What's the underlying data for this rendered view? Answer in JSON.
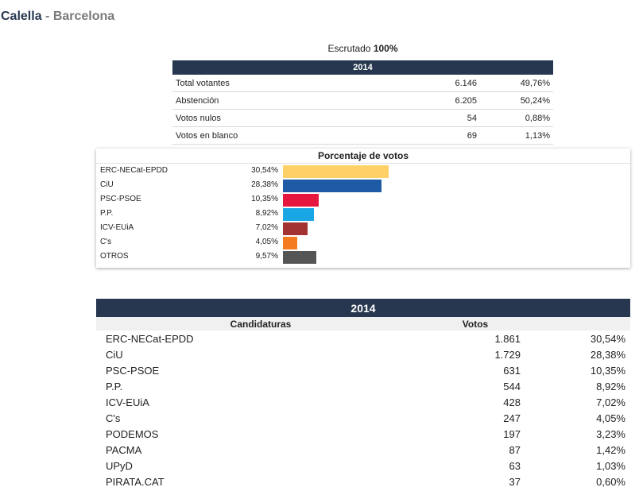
{
  "header": {
    "city": "Calella",
    "separator": "-",
    "province": "Barcelona"
  },
  "scrutiny": {
    "label": "Escrutado",
    "value": "100%"
  },
  "summary": {
    "year": "2014",
    "rows": [
      {
        "label": "Total votantes",
        "count": "6.146",
        "pct": "49,76%"
      },
      {
        "label": "Abstención",
        "count": "6.205",
        "pct": "50,24%"
      },
      {
        "label": "Votos nulos",
        "count": "54",
        "pct": "0,88%"
      },
      {
        "label": "Votos en blanco",
        "count": "69",
        "pct": "1,13%"
      }
    ]
  },
  "chart": {
    "title": "Porcentaje de votos",
    "bars": [
      {
        "party": "ERC-NECat-EPDD",
        "value": "30,54%",
        "pct": 30.54,
        "color": "#ffd166"
      },
      {
        "party": "CiU",
        "value": "28,38%",
        "pct": 28.38,
        "color": "#1f5aa6"
      },
      {
        "party": "PSC-PSOE",
        "value": "10,35%",
        "pct": 10.35,
        "color": "#e5173f"
      },
      {
        "party": "P.P.",
        "value": "8,92%",
        "pct": 8.92,
        "color": "#1aa6e4"
      },
      {
        "party": "ICV-EUiA",
        "value": "7,02%",
        "pct": 7.02,
        "color": "#a33232"
      },
      {
        "party": "C's",
        "value": "4,05%",
        "pct": 4.05,
        "color": "#f47b20"
      },
      {
        "party": "OTROS",
        "value": "9,57%",
        "pct": 9.57,
        "color": "#555555"
      }
    ]
  },
  "results": {
    "year": "2014",
    "col_candidates": "Candidaturas",
    "col_votes": "Votos",
    "rows": [
      {
        "name": "ERC-NECat-EPDD",
        "votes": "1.861",
        "pct": "30,54%"
      },
      {
        "name": "CiU",
        "votes": "1.729",
        "pct": "28,38%"
      },
      {
        "name": "PSC-PSOE",
        "votes": "631",
        "pct": "10,35%"
      },
      {
        "name": "P.P.",
        "votes": "544",
        "pct": "8,92%"
      },
      {
        "name": "ICV-EUiA",
        "votes": "428",
        "pct": "7,02%"
      },
      {
        "name": "C's",
        "votes": "247",
        "pct": "4,05%"
      },
      {
        "name": "PODEMOS",
        "votes": "197",
        "pct": "3,23%"
      },
      {
        "name": "PACMA",
        "votes": "87",
        "pct": "1,42%"
      },
      {
        "name": "UPyD",
        "votes": "63",
        "pct": "1,03%"
      },
      {
        "name": "PIRATA.CAT",
        "votes": "37",
        "pct": "0,60%"
      }
    ]
  }
}
